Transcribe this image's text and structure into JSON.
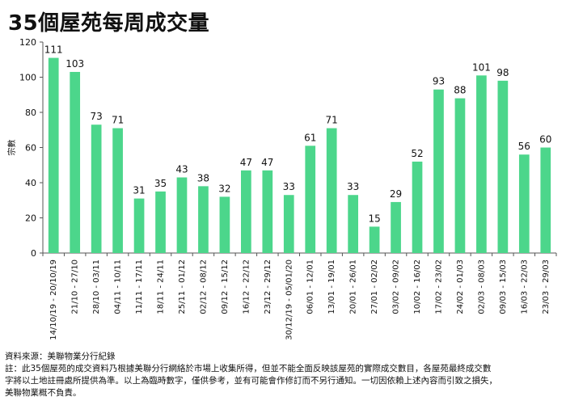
{
  "title": "35個屋苑每周成交量",
  "chart_data": {
    "type": "bar",
    "title": "35個屋苑每周成交量",
    "xlabel": "",
    "ylabel": "宗數",
    "ylim": [
      0,
      120
    ],
    "yticks": [
      0,
      20,
      40,
      60,
      80,
      100,
      120
    ],
    "bar_color": "#4cd68b",
    "categories": [
      "14/10/19 - 20/10/19",
      "21/10 - 27/10",
      "28/10 - 03/11",
      "04/11 - 10/11",
      "11/11 - 17/11",
      "18/11 - 24/11",
      "25/11 - 01/12",
      "02/12 - 08/12",
      "09/12 - 15/12",
      "16/12 - 22/12",
      "23/12 - 29/12",
      "30/12/19 - 05/01/20",
      "06/01 - 12/01",
      "13/01 - 19/01",
      "20/01 - 26/01",
      "27/01 - 02/02",
      "03/02 - 09/02",
      "10/02 - 16/02",
      "17/02 - 23/02",
      "24/02 - 01/03",
      "02/03 - 08/03",
      "09/03 - 15/03",
      "16/03 - 22/03",
      "23/03 - 29/03"
    ],
    "values": [
      111,
      103,
      73,
      71,
      31,
      35,
      43,
      38,
      32,
      47,
      47,
      33,
      61,
      71,
      33,
      15,
      29,
      52,
      93,
      88,
      101,
      98,
      56,
      60
    ]
  },
  "footer": {
    "source": "資料來源：美聯物業分行紀錄",
    "note_line1": "註：此35個屋苑的成交資料乃根據美聯分行網絡於市場上收集所得，但並不能全面反映該屋苑的實際成交數目，各屋苑最終成交數",
    "note_line2": "字將以土地註冊處所提供為準。以上為臨時數字，僅供參考，並有可能會作修訂而不另行通知。一切因依賴上述內容而引致之損失，",
    "note_line3": "美聯物業概不負責。"
  }
}
